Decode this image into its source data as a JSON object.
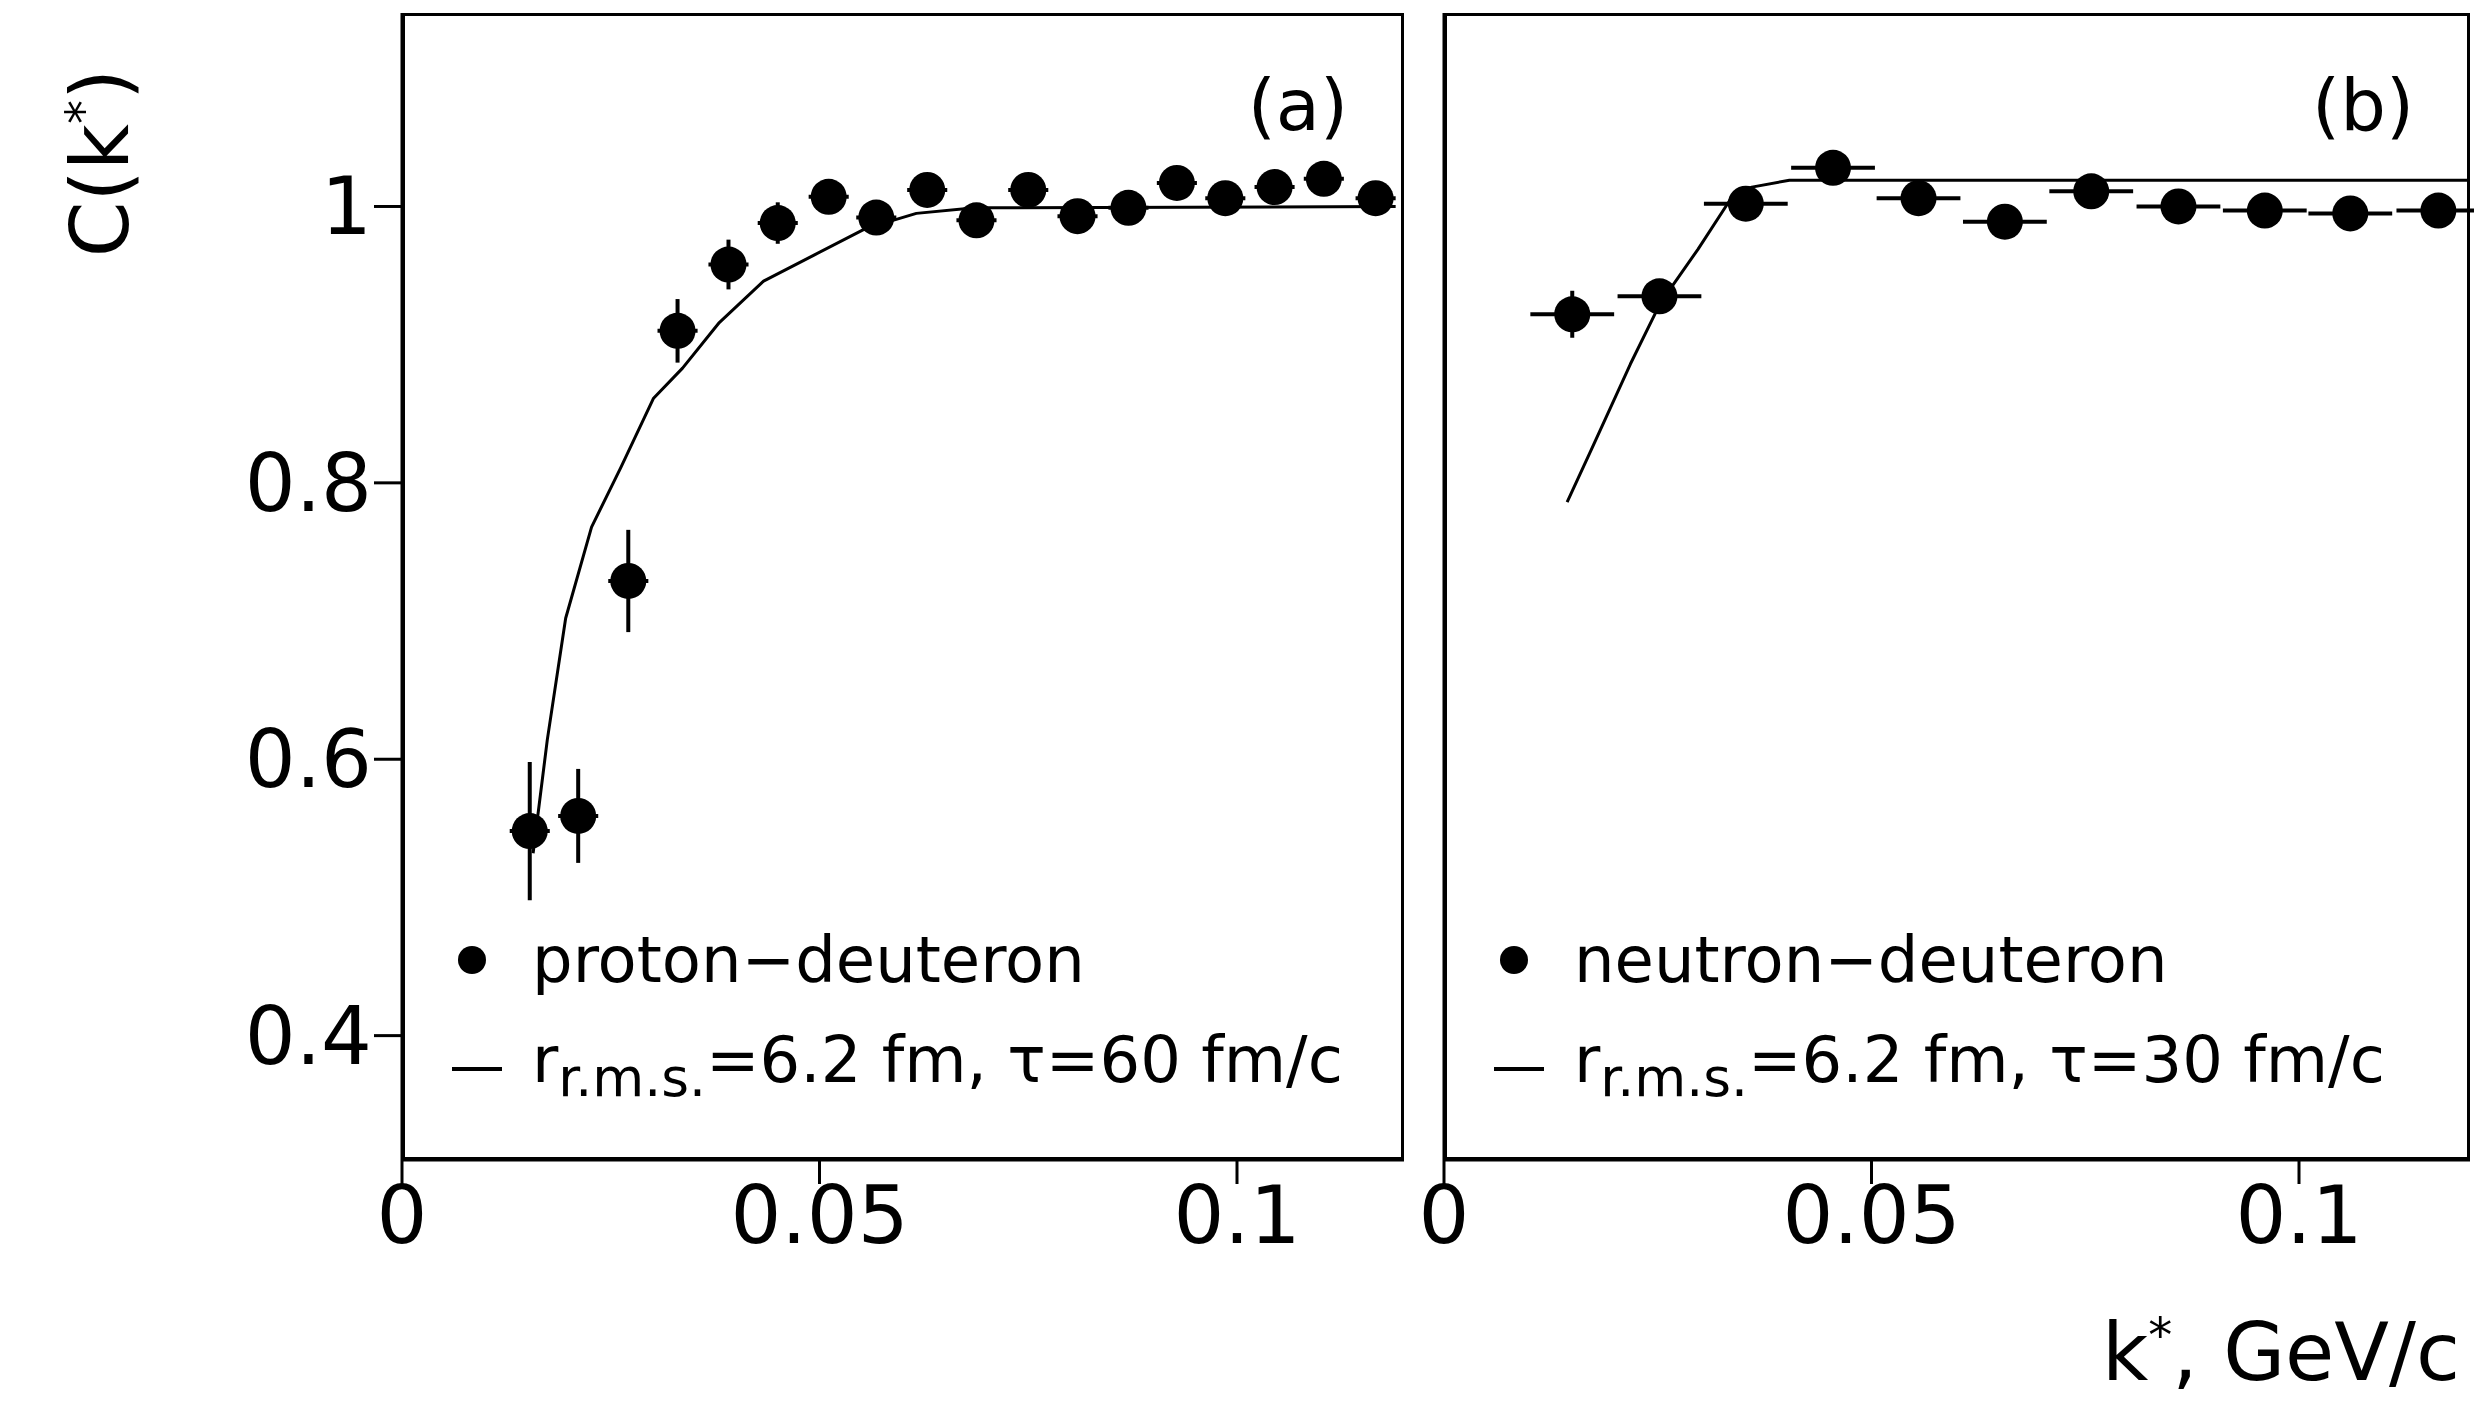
{
  "chart_data": [
    {
      "type": "scatter",
      "ylabel": "C(k$^{*}$)",
      "annotations": [
        "(a)"
      ],
      "xlim": [
        0,
        0.12
      ],
      "xticks": [
        0,
        0.05,
        0.1
      ],
      "ylim": [
        0.31,
        1.14
      ],
      "yticks": [
        0.4,
        0.6,
        0.8,
        1
      ],
      "legend": "bottom left",
      "series": [
        {
          "name": "proton−deuteron",
          "type": "scatter",
          "marker": "circle",
          "color": "#000000",
          "x": [
            0.0153,
            0.0211,
            0.0271,
            0.033,
            0.0391,
            0.045,
            0.0511,
            0.0568,
            0.0629,
            0.0688,
            0.075,
            0.0809,
            0.087,
            0.0928,
            0.0986,
            0.1045,
            0.1104,
            0.1166
          ],
          "values": [
            0.548,
            0.559,
            0.729,
            0.91,
            0.958,
            0.988,
            1.007,
            0.992,
            1.012,
            0.99,
            1.012,
            0.993,
            0.999,
            1.017,
            1.006,
            1.014,
            1.02,
            1.006
          ],
          "errors": [
            0.05,
            0.034,
            0.037,
            0.023,
            0.018,
            0.015,
            0.012,
            0.012,
            0.01,
            0.01,
            0.01,
            0.01,
            0.01,
            0.01,
            0.01,
            0.01,
            0.01,
            0.01
          ],
          "xerrors": [
            0.0024,
            0.0024,
            0.0024,
            0.0024,
            0.0024,
            0.0024,
            0.0024,
            0.0024,
            0.0024,
            0.0024,
            0.0024,
            0.0024,
            0.0024,
            0.0024,
            0.0024,
            0.0024,
            0.0024,
            0.0024
          ]
        },
        {
          "name": "r$_{r.m.s.}$=6.2 fm, τ=60 fm/c",
          "type": "line",
          "marker": "none",
          "color": "#000000",
          "x": [
            0.0157,
            0.0174,
            0.0196,
            0.0227,
            0.0262,
            0.0301,
            0.0336,
            0.038,
            0.0433,
            0.0494,
            0.0555,
            0.0616,
            0.0686,
            0.119
          ],
          "values": [
            0.532,
            0.614,
            0.702,
            0.768,
            0.811,
            0.861,
            0.883,
            0.916,
            0.946,
            0.965,
            0.984,
            0.995,
            0.999,
            1.0
          ]
        }
      ]
    },
    {
      "type": "scatter",
      "xlabel": "k$^{*}$, GeV/c",
      "annotations": [
        "(b)"
      ],
      "xlim": [
        0,
        0.12
      ],
      "xticks": [
        0,
        0.05,
        0.1
      ],
      "ylim": [
        0.31,
        1.14
      ],
      "tick_labels": "x",
      "legend": "bottom left",
      "series": [
        {
          "name": "neutron−deuteron",
          "type": "scatter",
          "marker": "circle",
          "color": "#000000",
          "x": [
            0.015,
            0.0252,
            0.0353,
            0.0455,
            0.0555,
            0.0656,
            0.0757,
            0.0859,
            0.096,
            0.106,
            0.1163
          ],
          "values": [
            0.922,
            0.935,
            1.002,
            1.028,
            1.006,
            0.989,
            1.011,
            1.0,
            0.997,
            0.995,
            0.997
          ],
          "errors": [
            0.017,
            0.008,
            0.008,
            0.008,
            0.006,
            0.006,
            0.006,
            0.006,
            0.006,
            0.006,
            0.006
          ],
          "xerrors": [
            0.0049,
            0.0049,
            0.0049,
            0.0049,
            0.0049,
            0.0049,
            0.0049,
            0.0049,
            0.0049,
            0.0049,
            0.0049
          ]
        },
        {
          "name": "r$_{r.m.s.}$=6.2 fm, τ=30 fm/c",
          "type": "line",
          "marker": "none",
          "color": "#000000",
          "x": [
            0.0144,
            0.0173,
            0.0218,
            0.0253,
            0.0297,
            0.0337,
            0.036,
            0.0404,
            0.12
          ],
          "values": [
            0.786,
            0.825,
            0.886,
            0.93,
            0.969,
            1.007,
            1.014,
            1.019,
            1.019
          ]
        }
      ]
    }
  ]
}
